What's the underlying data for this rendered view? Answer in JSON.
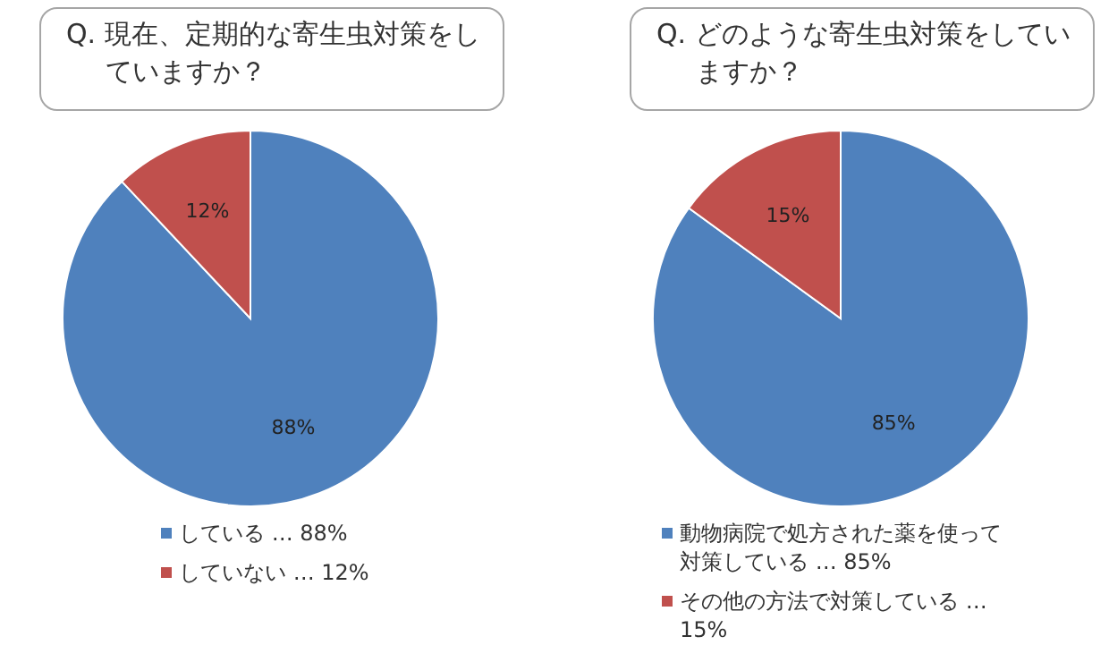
{
  "chart_data": [
    {
      "type": "pie",
      "title": "Q. 現在、定期的な寄生虫対策をしていますか？",
      "categories": [
        "している … 88%",
        "していない … 12%"
      ],
      "values": [
        88,
        12
      ],
      "colors": [
        "#4f81bd",
        "#c0504d"
      ],
      "value_labels": [
        "88%",
        "12%"
      ],
      "legend": "bottom"
    },
    {
      "type": "pie",
      "title": "Q. どのような寄生虫対策をしていますか？",
      "categories": [
        "動物病院で処方された薬を使って対策している … 85%",
        "その他の方法で対策している … 15%"
      ],
      "values": [
        85,
        15
      ],
      "colors": [
        "#4f81bd",
        "#c0504d"
      ],
      "value_labels": [
        "85%",
        "15%"
      ],
      "legend": "bottom"
    }
  ]
}
